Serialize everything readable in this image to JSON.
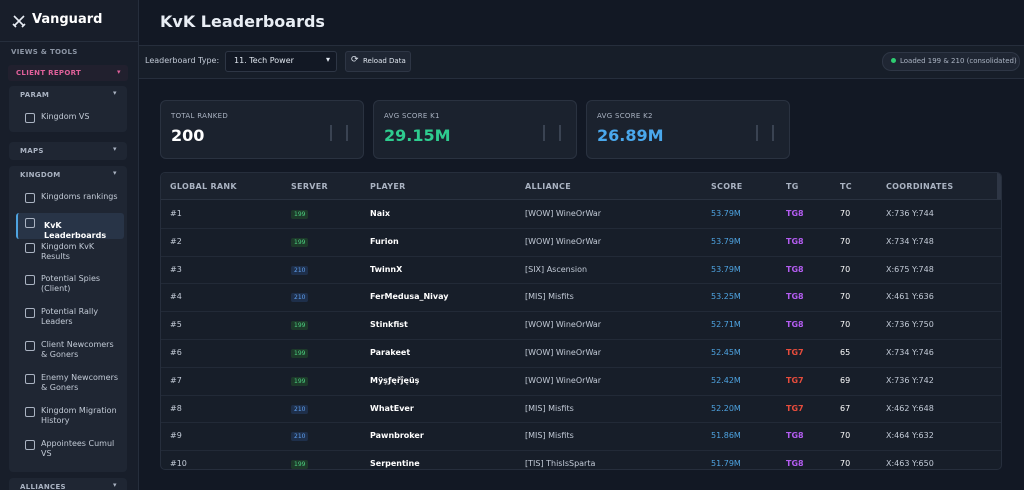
{
  "sidebar": {
    "brand": "Vanguard",
    "section": "VIEWS & TOOLS",
    "client_report": "CLIENT REPORT",
    "groups": [
      {
        "title": "PARAM",
        "items": [
          "Kingdom VS"
        ]
      },
      {
        "title": "MAPS",
        "items": []
      },
      {
        "title": "KINGDOM",
        "items": [
          "Kingdoms rankings",
          "KvK Leaderboards",
          "Kingdom KvK Results",
          "Potential Spies (Client)",
          "Potential Rally Leaders",
          "Client Newcomers & Goners",
          "Enemy Newcomers & Goners",
          "Kingdom Migration History",
          "Appointees Cumul VS"
        ],
        "active_item": 1
      },
      {
        "title": "ALLIANCES",
        "items": []
      }
    ]
  },
  "header": {
    "title": "KvK Leaderboards"
  },
  "toolbar": {
    "type_label": "Leaderboard Type:",
    "type_value": "11. Tech Power",
    "reload": "Reload Data",
    "status": "Loaded 199 & 210 (consolidated)"
  },
  "stats": [
    {
      "label": "TOTAL RANKED",
      "value": "200"
    },
    {
      "label": "AVG SCORE K1",
      "value": "29.15M"
    },
    {
      "label": "AVG SCORE K2",
      "value": "26.89M"
    }
  ],
  "table": {
    "columns": [
      "GLOBAL RANK",
      "SERVER",
      "PLAYER",
      "ALLIANCE",
      "SCORE",
      "TG",
      "TC",
      "COORDINATES"
    ],
    "rows": [
      [
        "#1",
        "199",
        "Naix",
        "[WOW] WineOrWar",
        "53.79M",
        "TG8",
        "70",
        "X:736 Y:744"
      ],
      [
        "#2",
        "199",
        "Furion",
        "[WOW] WineOrWar",
        "53.79M",
        "TG8",
        "70",
        "X:734 Y:748"
      ],
      [
        "#3",
        "210",
        "TwinnX",
        "[SIX] Ascension",
        "53.79M",
        "TG8",
        "70",
        "X:675 Y:748"
      ],
      [
        "#4",
        "210",
        "FerMedusa_Nivay",
        "[MIS] Misfits",
        "53.25M",
        "TG8",
        "70",
        "X:461 Y:636"
      ],
      [
        "#5",
        "199",
        "Stinkfist",
        "[WOW] WineOrWar",
        "52.71M",
        "TG8",
        "70",
        "X:736 Y:750"
      ],
      [
        "#6",
        "199",
        "Parakeet",
        "[WOW] WineOrWar",
        "52.45M",
        "TG7",
        "65",
        "X:734 Y:746"
      ],
      [
        "#7",
        "199",
        "Mÿşƒęřĵęüş",
        "[WOW] WineOrWar",
        "52.42M",
        "TG7",
        "69",
        "X:736 Y:742"
      ],
      [
        "#8",
        "210",
        "WhatEver",
        "[MIS] Misfits",
        "52.20M",
        "TG7",
        "67",
        "X:462 Y:648"
      ],
      [
        "#9",
        "210",
        "Pawnbroker",
        "[MIS] Misfits",
        "51.86M",
        "TG8",
        "70",
        "X:464 Y:632"
      ],
      [
        "#10",
        "199",
        "Serpentine",
        "[TIS] ThisIsSparta",
        "51.79M",
        "TG8",
        "70",
        "X:463 Y:650"
      ]
    ]
  }
}
